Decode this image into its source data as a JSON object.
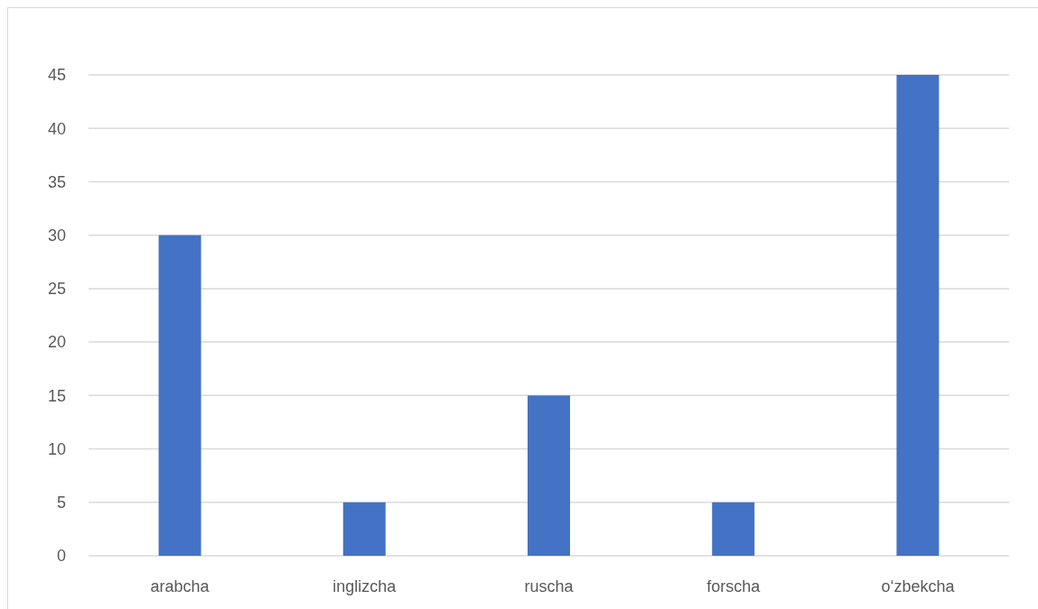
{
  "chart_data": {
    "type": "bar",
    "categories": [
      "arabcha",
      "inglizcha",
      "ruscha",
      "forscha",
      "o‘zbekcha"
    ],
    "values": [
      30,
      5,
      15,
      5,
      45
    ],
    "color": "#4472c4",
    "ylim": [
      0,
      45
    ],
    "yticks": [
      0,
      5,
      10,
      15,
      20,
      25,
      30,
      35,
      40,
      45
    ],
    "grid": "y"
  }
}
